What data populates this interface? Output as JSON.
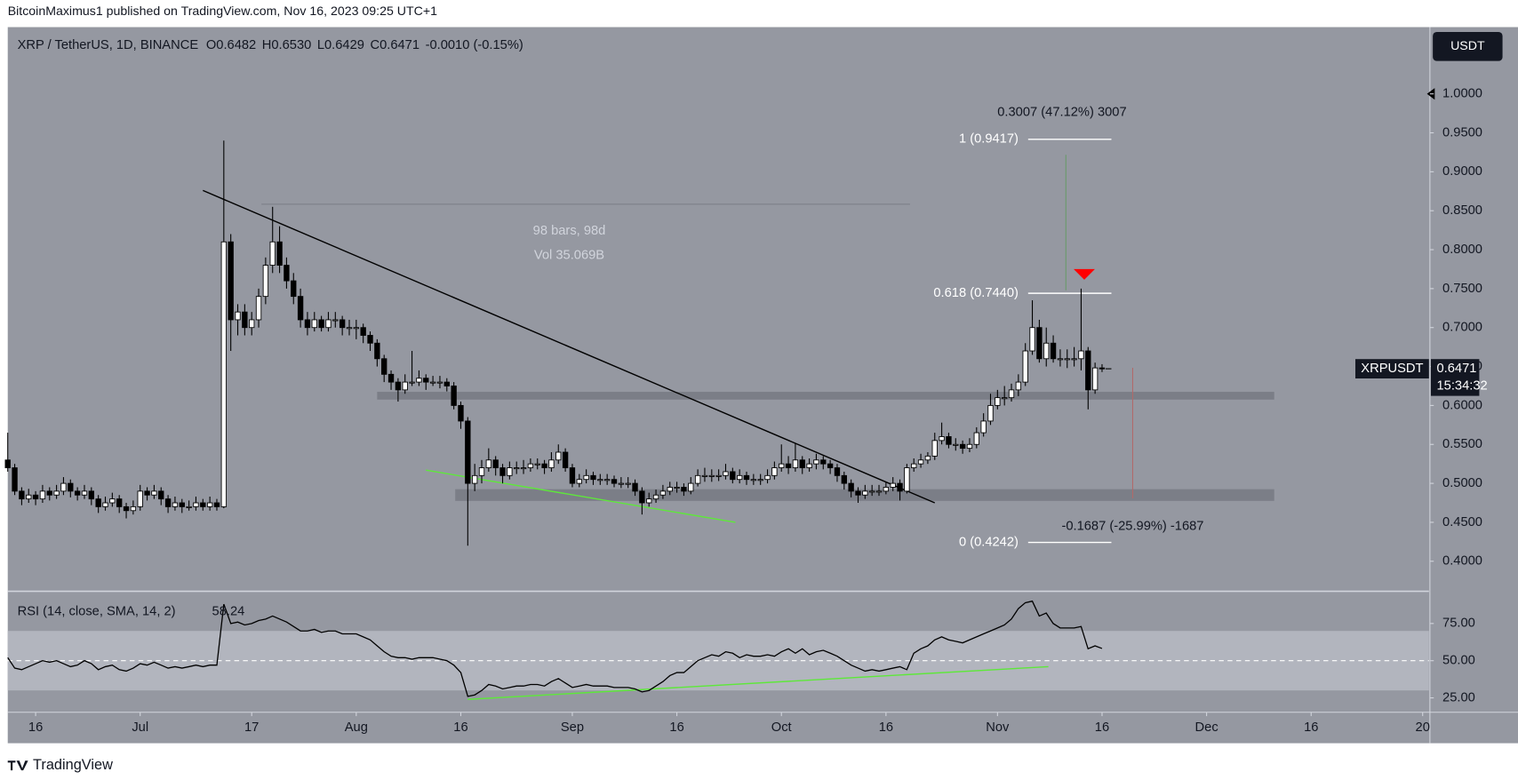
{
  "publisher": "BitcoinMaximus1 published on TradingView.com, Nov 16, 2023 09:25 UTC+1",
  "footer": "TradingView",
  "currency_button": "USDT",
  "chart_data": {
    "type": "candlestick",
    "title": "XRP / TetherUS, 1D, BINANCE",
    "ohlc_legend": [
      {
        "label": "O",
        "value": "0.6482"
      },
      {
        "label": "H",
        "value": "0.6530"
      },
      {
        "label": "L",
        "value": "0.6429"
      },
      {
        "label": "C",
        "value": "0.6471"
      }
    ],
    "change": "-0.0010 (-0.15%)",
    "colors": {
      "up": "#ffffff",
      "down": "#000000",
      "wick": "#000000"
    },
    "xlim": [
      0,
      203.9
    ],
    "xticks": [
      {
        "value": 4,
        "label": "16"
      },
      {
        "value": 19,
        "label": "Jul"
      },
      {
        "value": 35,
        "label": "17"
      },
      {
        "value": 50,
        "label": "Aug"
      },
      {
        "value": 65,
        "label": "16"
      },
      {
        "value": 81,
        "label": "Sep"
      },
      {
        "value": 96,
        "label": "16"
      },
      {
        "value": 111,
        "label": "Oct"
      },
      {
        "value": 126,
        "label": "16"
      },
      {
        "value": 142,
        "label": "Nov"
      },
      {
        "value": 157,
        "label": "16"
      },
      {
        "value": 172,
        "label": "Dec"
      },
      {
        "value": 187,
        "label": "16"
      },
      {
        "value": 203,
        "label": "20"
      }
    ],
    "ylim": [
      0.3627,
      1.0857
    ],
    "yticks": [
      {
        "value": 0.4,
        "label": "0.4000"
      },
      {
        "value": 0.45,
        "label": "0.4500"
      },
      {
        "value": 0.5,
        "label": "0.5000"
      },
      {
        "value": 0.55,
        "label": "0.5500"
      },
      {
        "value": 0.6,
        "label": "0.6000"
      },
      {
        "value": 0.65,
        "label": "0.6500"
      },
      {
        "value": 0.7,
        "label": "0.7000"
      },
      {
        "value": 0.75,
        "label": "0.7500"
      },
      {
        "value": 0.8,
        "label": "0.8000"
      },
      {
        "value": 0.85,
        "label": "0.8500"
      },
      {
        "value": 0.9,
        "label": "0.9000"
      },
      {
        "value": 0.95,
        "label": "0.9500"
      },
      {
        "value": 1,
        "label": "1.0000"
      }
    ],
    "grid": false,
    "candles": [
      [
        0.53,
        0.565,
        0.515,
        0.52
      ],
      [
        0.52,
        0.525,
        0.485,
        0.49
      ],
      [
        0.49,
        0.495,
        0.472,
        0.48
      ],
      [
        0.48,
        0.493,
        0.475,
        0.485
      ],
      [
        0.485,
        0.49,
        0.472,
        0.48
      ],
      [
        0.48,
        0.498,
        0.475,
        0.49
      ],
      [
        0.49,
        0.495,
        0.478,
        0.485
      ],
      [
        0.485,
        0.498,
        0.48,
        0.49
      ],
      [
        0.49,
        0.508,
        0.485,
        0.5
      ],
      [
        0.5,
        0.505,
        0.482,
        0.49
      ],
      [
        0.49,
        0.495,
        0.478,
        0.485
      ],
      [
        0.485,
        0.498,
        0.48,
        0.49
      ],
      [
        0.49,
        0.495,
        0.472,
        0.48
      ],
      [
        0.48,
        0.485,
        0.462,
        0.47
      ],
      [
        0.47,
        0.483,
        0.465,
        0.475
      ],
      [
        0.475,
        0.488,
        0.47,
        0.48
      ],
      [
        0.48,
        0.485,
        0.462,
        0.47
      ],
      [
        0.47,
        0.475,
        0.455,
        0.465
      ],
      [
        0.465,
        0.478,
        0.46,
        0.47
      ],
      [
        0.47,
        0.498,
        0.465,
        0.49
      ],
      [
        0.49,
        0.495,
        0.478,
        0.485
      ],
      [
        0.485,
        0.498,
        0.48,
        0.49
      ],
      [
        0.49,
        0.495,
        0.472,
        0.48
      ],
      [
        0.48,
        0.485,
        0.462,
        0.47
      ],
      [
        0.47,
        0.483,
        0.465,
        0.475
      ],
      [
        0.475,
        0.48,
        0.462,
        0.47
      ],
      [
        0.47,
        0.478,
        0.465,
        0.47
      ],
      [
        0.47,
        0.483,
        0.465,
        0.475
      ],
      [
        0.475,
        0.48,
        0.465,
        0.47
      ],
      [
        0.47,
        0.483,
        0.465,
        0.475
      ],
      [
        0.475,
        0.48,
        0.465,
        0.47
      ],
      [
        0.47,
        0.94,
        0.468,
        0.81
      ],
      [
        0.81,
        0.82,
        0.67,
        0.71
      ],
      [
        0.71,
        0.73,
        0.69,
        0.72
      ],
      [
        0.72,
        0.73,
        0.69,
        0.7
      ],
      [
        0.7,
        0.72,
        0.69,
        0.71
      ],
      [
        0.71,
        0.75,
        0.7,
        0.74
      ],
      [
        0.74,
        0.79,
        0.73,
        0.78
      ],
      [
        0.78,
        0.855,
        0.77,
        0.81
      ],
      [
        0.81,
        0.83,
        0.77,
        0.78
      ],
      [
        0.78,
        0.79,
        0.75,
        0.76
      ],
      [
        0.76,
        0.77,
        0.73,
        0.74
      ],
      [
        0.74,
        0.75,
        0.7,
        0.71
      ],
      [
        0.71,
        0.72,
        0.69,
        0.7
      ],
      [
        0.7,
        0.72,
        0.695,
        0.71
      ],
      [
        0.71,
        0.715,
        0.695,
        0.7
      ],
      [
        0.7,
        0.72,
        0.695,
        0.71
      ],
      [
        0.71,
        0.72,
        0.7,
        0.71
      ],
      [
        0.71,
        0.715,
        0.69,
        0.7
      ],
      [
        0.7,
        0.71,
        0.69,
        0.7
      ],
      [
        0.7,
        0.71,
        0.685,
        0.7
      ],
      [
        0.7,
        0.705,
        0.68,
        0.69
      ],
      [
        0.69,
        0.695,
        0.67,
        0.68
      ],
      [
        0.68,
        0.685,
        0.65,
        0.66
      ],
      [
        0.66,
        0.665,
        0.63,
        0.64
      ],
      [
        0.64,
        0.645,
        0.62,
        0.63
      ],
      [
        0.63,
        0.635,
        0.605,
        0.62
      ],
      [
        0.62,
        0.64,
        0.615,
        0.63
      ],
      [
        0.63,
        0.67,
        0.625,
        0.63
      ],
      [
        0.63,
        0.645,
        0.625,
        0.635
      ],
      [
        0.635,
        0.64,
        0.62,
        0.63
      ],
      [
        0.63,
        0.638,
        0.625,
        0.63
      ],
      [
        0.63,
        0.638,
        0.622,
        0.63
      ],
      [
        0.63,
        0.635,
        0.618,
        0.625
      ],
      [
        0.625,
        0.63,
        0.595,
        0.6
      ],
      [
        0.6,
        0.605,
        0.57,
        0.58
      ],
      [
        0.58,
        0.585,
        0.42,
        0.5
      ],
      [
        0.5,
        0.525,
        0.49,
        0.51
      ],
      [
        0.51,
        0.53,
        0.5,
        0.52
      ],
      [
        0.52,
        0.545,
        0.515,
        0.53
      ],
      [
        0.53,
        0.535,
        0.51,
        0.52
      ],
      [
        0.52,
        0.525,
        0.5,
        0.51
      ],
      [
        0.51,
        0.528,
        0.505,
        0.52
      ],
      [
        0.52,
        0.528,
        0.512,
        0.52
      ],
      [
        0.52,
        0.53,
        0.512,
        0.52
      ],
      [
        0.52,
        0.532,
        0.515,
        0.525
      ],
      [
        0.525,
        0.532,
        0.518,
        0.525
      ],
      [
        0.525,
        0.53,
        0.512,
        0.52
      ],
      [
        0.52,
        0.54,
        0.515,
        0.53
      ],
      [
        0.53,
        0.55,
        0.525,
        0.54
      ],
      [
        0.54,
        0.545,
        0.515,
        0.52
      ],
      [
        0.52,
        0.525,
        0.495,
        0.5
      ],
      [
        0.5,
        0.512,
        0.495,
        0.505
      ],
      [
        0.505,
        0.518,
        0.5,
        0.51
      ],
      [
        0.51,
        0.515,
        0.498,
        0.505
      ],
      [
        0.505,
        0.512,
        0.498,
        0.505
      ],
      [
        0.505,
        0.512,
        0.498,
        0.505
      ],
      [
        0.505,
        0.51,
        0.495,
        0.5
      ],
      [
        0.5,
        0.508,
        0.494,
        0.5
      ],
      [
        0.5,
        0.508,
        0.494,
        0.5
      ],
      [
        0.5,
        0.505,
        0.484,
        0.49
      ],
      [
        0.49,
        0.495,
        0.46,
        0.475
      ],
      [
        0.475,
        0.488,
        0.47,
        0.48
      ],
      [
        0.48,
        0.492,
        0.475,
        0.485
      ],
      [
        0.485,
        0.498,
        0.48,
        0.49
      ],
      [
        0.49,
        0.502,
        0.485,
        0.495
      ],
      [
        0.495,
        0.502,
        0.488,
        0.495
      ],
      [
        0.495,
        0.5,
        0.484,
        0.49
      ],
      [
        0.49,
        0.508,
        0.486,
        0.5
      ],
      [
        0.5,
        0.518,
        0.496,
        0.51
      ],
      [
        0.51,
        0.52,
        0.502,
        0.51
      ],
      [
        0.51,
        0.518,
        0.502,
        0.51
      ],
      [
        0.51,
        0.518,
        0.503,
        0.51
      ],
      [
        0.51,
        0.525,
        0.505,
        0.515
      ],
      [
        0.515,
        0.52,
        0.5,
        0.505
      ],
      [
        0.505,
        0.518,
        0.5,
        0.51
      ],
      [
        0.51,
        0.515,
        0.498,
        0.505
      ],
      [
        0.505,
        0.512,
        0.498,
        0.505
      ],
      [
        0.505,
        0.512,
        0.498,
        0.505
      ],
      [
        0.505,
        0.518,
        0.5,
        0.51
      ],
      [
        0.51,
        0.528,
        0.505,
        0.52
      ],
      [
        0.52,
        0.55,
        0.515,
        0.525
      ],
      [
        0.525,
        0.535,
        0.512,
        0.52
      ],
      [
        0.52,
        0.552,
        0.515,
        0.53
      ],
      [
        0.53,
        0.535,
        0.512,
        0.52
      ],
      [
        0.52,
        0.532,
        0.515,
        0.525
      ],
      [
        0.525,
        0.538,
        0.518,
        0.53
      ],
      [
        0.53,
        0.535,
        0.518,
        0.525
      ],
      [
        0.525,
        0.53,
        0.512,
        0.52
      ],
      [
        0.52,
        0.525,
        0.502,
        0.51
      ],
      [
        0.51,
        0.515,
        0.492,
        0.5
      ],
      [
        0.5,
        0.505,
        0.482,
        0.49
      ],
      [
        0.49,
        0.495,
        0.475,
        0.485
      ],
      [
        0.485,
        0.498,
        0.48,
        0.49
      ],
      [
        0.49,
        0.498,
        0.484,
        0.49
      ],
      [
        0.49,
        0.498,
        0.484,
        0.49
      ],
      [
        0.49,
        0.502,
        0.486,
        0.495
      ],
      [
        0.495,
        0.508,
        0.49,
        0.5
      ],
      [
        0.5,
        0.505,
        0.478,
        0.49
      ],
      [
        0.49,
        0.525,
        0.487,
        0.52
      ],
      [
        0.52,
        0.532,
        0.515,
        0.525
      ],
      [
        0.525,
        0.538,
        0.52,
        0.53
      ],
      [
        0.53,
        0.54,
        0.525,
        0.535
      ],
      [
        0.535,
        0.565,
        0.53,
        0.555
      ],
      [
        0.555,
        0.578,
        0.55,
        0.56
      ],
      [
        0.56,
        0.565,
        0.545,
        0.55
      ],
      [
        0.55,
        0.558,
        0.542,
        0.55
      ],
      [
        0.55,
        0.555,
        0.538,
        0.545
      ],
      [
        0.545,
        0.558,
        0.54,
        0.55
      ],
      [
        0.55,
        0.572,
        0.545,
        0.565
      ],
      [
        0.565,
        0.59,
        0.56,
        0.58
      ],
      [
        0.58,
        0.615,
        0.575,
        0.6
      ],
      [
        0.6,
        0.62,
        0.595,
        0.61
      ],
      [
        0.61,
        0.625,
        0.6,
        0.61
      ],
      [
        0.61,
        0.628,
        0.605,
        0.62
      ],
      [
        0.62,
        0.64,
        0.612,
        0.63
      ],
      [
        0.63,
        0.68,
        0.625,
        0.67
      ],
      [
        0.67,
        0.735,
        0.665,
        0.7
      ],
      [
        0.7,
        0.71,
        0.655,
        0.66
      ],
      [
        0.66,
        0.7,
        0.65,
        0.68
      ],
      [
        0.68,
        0.69,
        0.655,
        0.66
      ],
      [
        0.66,
        0.672,
        0.65,
        0.66
      ],
      [
        0.66,
        0.672,
        0.648,
        0.66
      ],
      [
        0.66,
        0.675,
        0.65,
        0.66
      ],
      [
        0.66,
        0.75,
        0.645,
        0.67
      ],
      [
        0.67,
        0.675,
        0.595,
        0.62
      ],
      [
        0.62,
        0.655,
        0.615,
        0.6482
      ],
      [
        0.6482,
        0.653,
        0.6429,
        0.6471
      ]
    ],
    "last_price": {
      "symbol": "XRPUSDT",
      "value": 0.6471,
      "countdown": "15:34:32"
    },
    "zones": [
      {
        "low": 0.6075,
        "high": 0.6175,
        "x": [
          53,
          181.7
        ]
      },
      {
        "low": 0.4775,
        "high": 0.4925,
        "x": [
          64.2,
          181.7
        ]
      }
    ],
    "trendlines": [
      {
        "color": "#000000",
        "x": [
          28,
          133
        ],
        "y": [
          0.876,
          0.475
        ]
      },
      {
        "color": "#5ee83a",
        "x": [
          60,
          104.4
        ],
        "y": [
          0.517,
          0.45
        ]
      }
    ],
    "fib_levels": [
      {
        "value": 0.9417,
        "label": "1 (0.9417)"
      },
      {
        "value": 0.744,
        "label": "0.618 (0.7440)"
      },
      {
        "value": 0.4242,
        "label": "0 (0.4242)"
      }
    ],
    "annotations": {
      "measure_up": "0.3007 (47.12%) 3007",
      "measure_down": "-0.1687 (-25.99%) -1687",
      "date_range": "98 bars, 98d",
      "volume": "Vol 35.069B"
    },
    "rsi": {
      "title": "RSI (14, close, SMA, 14, 2)",
      "last": 58.24,
      "color": "#000000",
      "ylim": [
        16,
        96
      ],
      "yticks": [
        {
          "value": 25,
          "label": "25.00"
        },
        {
          "value": 50,
          "label": "50.00"
        },
        {
          "value": 75,
          "label": "75.00"
        }
      ],
      "band": [
        30,
        70
      ],
      "midline": 50,
      "trendline": {
        "color": "#5ee83a",
        "x": [
          66,
          149.3
        ],
        "y": [
          24,
          46
        ]
      },
      "values": [
        52,
        45,
        44,
        46,
        48,
        50,
        49,
        50,
        48,
        46,
        47,
        50,
        48,
        44,
        46,
        47,
        44,
        43,
        45,
        48,
        47,
        49,
        47,
        45,
        46,
        45,
        46,
        47,
        46,
        47,
        47,
        88,
        75,
        76,
        74,
        75,
        77,
        78,
        80,
        78,
        76,
        73,
        70,
        70,
        71,
        69,
        70,
        70,
        68,
        68,
        68,
        66,
        64,
        60,
        56,
        53,
        52,
        52,
        51,
        52,
        52,
        52,
        51,
        50,
        47,
        42,
        26,
        27,
        30,
        34,
        33,
        31,
        32,
        33,
        33,
        34,
        34,
        33,
        36,
        38,
        35,
        32,
        33,
        34,
        33,
        33,
        33,
        32,
        32,
        32,
        31,
        29,
        30,
        33,
        36,
        40,
        42,
        42,
        46,
        50,
        52,
        54,
        53,
        56,
        55,
        52,
        54,
        53,
        53,
        54,
        53,
        56,
        58,
        55,
        58,
        54,
        56,
        57,
        55,
        53,
        50,
        47,
        45,
        43,
        44,
        43,
        44,
        45,
        46,
        44,
        55,
        58,
        60,
        64,
        66,
        64,
        63,
        62,
        64,
        66,
        68,
        70,
        72,
        74,
        78,
        85,
        89,
        90,
        80,
        82,
        75,
        72,
        72,
        72,
        73,
        58,
        60,
        58.24
      ]
    }
  }
}
